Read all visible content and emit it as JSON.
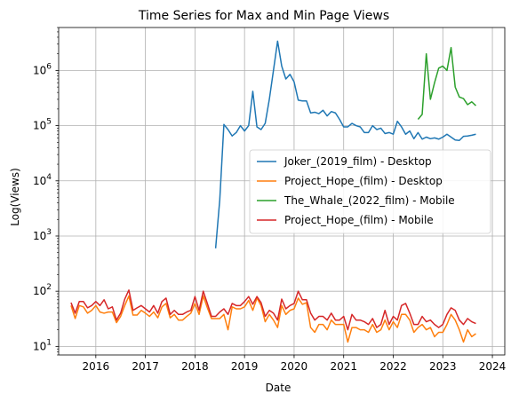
{
  "chart_data": {
    "type": "line",
    "title": "Time Series for Max and Min Page Views",
    "xlabel": "Date",
    "ylabel": "Log(Views)",
    "yscale": "log",
    "xlim": [
      "2015-04",
      "2024-04"
    ],
    "ylim": [
      7,
      6000000
    ],
    "x_ticks": [
      "2016",
      "2017",
      "2018",
      "2019",
      "2020",
      "2021",
      "2022",
      "2023",
      "2024"
    ],
    "y_ticks": [
      {
        "value": 10,
        "base": "10",
        "exp": "1"
      },
      {
        "value": 100,
        "base": "10",
        "exp": "2"
      },
      {
        "value": 1000,
        "base": "10",
        "exp": "3"
      },
      {
        "value": 10000,
        "base": "10",
        "exp": "4"
      },
      {
        "value": 100000,
        "base": "10",
        "exp": "5"
      },
      {
        "value": 1000000,
        "base": "10",
        "exp": "6"
      }
    ],
    "grid": true,
    "legend_position": "center-right",
    "series": [
      {
        "name": "Joker_(2019_film) - Desktop",
        "color": "#1f77b4",
        "x": [
          "2018-06",
          "2018-07",
          "2018-08",
          "2018-09",
          "2018-10",
          "2018-11",
          "2018-12",
          "2019-01",
          "2019-02",
          "2019-03",
          "2019-04",
          "2019-05",
          "2019-06",
          "2019-07",
          "2019-08",
          "2019-09",
          "2019-10",
          "2019-11",
          "2019-12",
          "2020-01",
          "2020-02",
          "2020-03",
          "2020-04",
          "2020-05",
          "2020-06",
          "2020-07",
          "2020-08",
          "2020-09",
          "2020-10",
          "2020-11",
          "2020-12",
          "2021-01",
          "2021-02",
          "2021-03",
          "2021-04",
          "2021-05",
          "2021-06",
          "2021-07",
          "2021-08",
          "2021-09",
          "2021-10",
          "2021-11",
          "2021-12",
          "2022-01",
          "2022-02",
          "2022-03",
          "2022-04",
          "2022-05",
          "2022-06",
          "2022-07",
          "2022-08",
          "2022-09",
          "2022-10",
          "2022-11",
          "2022-12",
          "2023-01",
          "2023-02",
          "2023-03",
          "2023-04",
          "2023-05",
          "2023-06",
          "2023-07",
          "2023-08",
          "2023-09"
        ],
        "values": [
          600,
          4500,
          105000,
          85000,
          65000,
          75000,
          100000,
          80000,
          100000,
          420000,
          95000,
          85000,
          110000,
          300000,
          1000000,
          3400000,
          1200000,
          700000,
          850000,
          620000,
          290000,
          280000,
          280000,
          170000,
          175000,
          165000,
          190000,
          150000,
          180000,
          170000,
          130000,
          95000,
          95000,
          110000,
          100000,
          95000,
          75000,
          75000,
          100000,
          85000,
          90000,
          72000,
          75000,
          70000,
          120000,
          95000,
          70000,
          80000,
          58000,
          75000,
          57000,
          62000,
          58000,
          60000,
          57000,
          62000,
          70000,
          62000,
          55000,
          54000,
          64000,
          65000,
          67000,
          70000
        ]
      },
      {
        "name": "Project_Hope_(film) - Desktop",
        "color": "#ff7f0e",
        "x": [
          "2015-07",
          "2015-08",
          "2015-09",
          "2015-10",
          "2015-11",
          "2015-12",
          "2016-01",
          "2016-02",
          "2016-03",
          "2016-04",
          "2016-05",
          "2016-06",
          "2016-07",
          "2016-08",
          "2016-09",
          "2016-10",
          "2016-11",
          "2016-12",
          "2017-01",
          "2017-02",
          "2017-03",
          "2017-04",
          "2017-05",
          "2017-06",
          "2017-07",
          "2017-08",
          "2017-09",
          "2017-10",
          "2017-11",
          "2017-12",
          "2018-01",
          "2018-02",
          "2018-03",
          "2018-04",
          "2018-05",
          "2018-06",
          "2018-07",
          "2018-08",
          "2018-09",
          "2018-10",
          "2018-11",
          "2018-12",
          "2019-01",
          "2019-02",
          "2019-03",
          "2019-04",
          "2019-05",
          "2019-06",
          "2019-07",
          "2019-08",
          "2019-09",
          "2019-10",
          "2019-11",
          "2019-12",
          "2020-01",
          "2020-02",
          "2020-03",
          "2020-04",
          "2020-05",
          "2020-06",
          "2020-07",
          "2020-08",
          "2020-09",
          "2020-10",
          "2020-11",
          "2020-12",
          "2021-01",
          "2021-02",
          "2021-03",
          "2021-04",
          "2021-05",
          "2021-06",
          "2021-07",
          "2021-08",
          "2021-09",
          "2021-10",
          "2021-11",
          "2021-12",
          "2022-01",
          "2022-02",
          "2022-03",
          "2022-04",
          "2022-05",
          "2022-06",
          "2022-07",
          "2022-08",
          "2022-09",
          "2022-10",
          "2022-11",
          "2022-12",
          "2023-01",
          "2023-02",
          "2023-03",
          "2023-04",
          "2023-05",
          "2023-06",
          "2023-07",
          "2023-08",
          "2023-09"
        ],
        "values": [
          55,
          32,
          55,
          52,
          40,
          45,
          55,
          42,
          40,
          42,
          42,
          27,
          35,
          55,
          82,
          37,
          37,
          45,
          40,
          35,
          42,
          33,
          52,
          60,
          33,
          38,
          30,
          30,
          35,
          40,
          60,
          38,
          82,
          50,
          32,
          32,
          32,
          38,
          20,
          52,
          48,
          48,
          52,
          68,
          45,
          75,
          55,
          28,
          38,
          30,
          22,
          55,
          38,
          45,
          48,
          75,
          58,
          62,
          22,
          18,
          25,
          25,
          20,
          30,
          25,
          25,
          25,
          12,
          22,
          22,
          20,
          20,
          18,
          25,
          18,
          20,
          30,
          20,
          28,
          22,
          38,
          38,
          30,
          18,
          22,
          25,
          20,
          22,
          15,
          18,
          18,
          25,
          38,
          30,
          20,
          12,
          20,
          15,
          17
        ]
      },
      {
        "name": "The_Whale_(2022_film) - Mobile",
        "color": "#2ca02c",
        "x": [
          "2022-07",
          "2022-08",
          "2022-09",
          "2022-10",
          "2022-11",
          "2022-12",
          "2023-01",
          "2023-02",
          "2023-03",
          "2023-04",
          "2023-05",
          "2023-06",
          "2023-07",
          "2023-08",
          "2023-09"
        ],
        "values": [
          130000,
          160000,
          2000000,
          300000,
          600000,
          1100000,
          1200000,
          1000000,
          2600000,
          500000,
          330000,
          310000,
          240000,
          270000,
          230000
        ]
      },
      {
        "name": "Project_Hope_(film) - Mobile",
        "color": "#d62728",
        "x": [
          "2015-07",
          "2015-08",
          "2015-09",
          "2015-10",
          "2015-11",
          "2015-12",
          "2016-01",
          "2016-02",
          "2016-03",
          "2016-04",
          "2016-05",
          "2016-06",
          "2016-07",
          "2016-08",
          "2016-09",
          "2016-10",
          "2016-11",
          "2016-12",
          "2017-01",
          "2017-02",
          "2017-03",
          "2017-04",
          "2017-05",
          "2017-06",
          "2017-07",
          "2017-08",
          "2017-09",
          "2017-10",
          "2017-11",
          "2017-12",
          "2018-01",
          "2018-02",
          "2018-03",
          "2018-04",
          "2018-05",
          "2018-06",
          "2018-07",
          "2018-08",
          "2018-09",
          "2018-10",
          "2018-11",
          "2018-12",
          "2019-01",
          "2019-02",
          "2019-03",
          "2019-04",
          "2019-05",
          "2019-06",
          "2019-07",
          "2019-08",
          "2019-09",
          "2019-10",
          "2019-11",
          "2019-12",
          "2020-01",
          "2020-02",
          "2020-03",
          "2020-04",
          "2020-05",
          "2020-06",
          "2020-07",
          "2020-08",
          "2020-09",
          "2020-10",
          "2020-11",
          "2020-12",
          "2021-01",
          "2021-02",
          "2021-03",
          "2021-04",
          "2021-05",
          "2021-06",
          "2021-07",
          "2021-08",
          "2021-09",
          "2021-10",
          "2021-11",
          "2021-12",
          "2022-01",
          "2022-02",
          "2022-03",
          "2022-04",
          "2022-05",
          "2022-06",
          "2022-07",
          "2022-08",
          "2022-09",
          "2022-10",
          "2022-11",
          "2022-12",
          "2023-01",
          "2023-02",
          "2023-03",
          "2023-04",
          "2023-05",
          "2023-06",
          "2023-07",
          "2023-08",
          "2023-09"
        ],
        "values": [
          62,
          40,
          65,
          65,
          50,
          55,
          65,
          55,
          70,
          48,
          52,
          30,
          40,
          72,
          105,
          45,
          50,
          55,
          48,
          42,
          55,
          40,
          65,
          75,
          38,
          45,
          38,
          38,
          42,
          45,
          80,
          45,
          100,
          60,
          35,
          35,
          42,
          48,
          38,
          60,
          55,
          55,
          65,
          80,
          58,
          80,
          62,
          35,
          45,
          40,
          30,
          72,
          48,
          55,
          60,
          100,
          70,
          70,
          40,
          30,
          35,
          35,
          30,
          40,
          30,
          30,
          35,
          20,
          38,
          30,
          30,
          28,
          25,
          32,
          22,
          25,
          45,
          25,
          35,
          30,
          55,
          60,
          40,
          25,
          25,
          35,
          28,
          30,
          25,
          22,
          25,
          38,
          50,
          45,
          30,
          25,
          32,
          28,
          26
        ]
      }
    ]
  }
}
